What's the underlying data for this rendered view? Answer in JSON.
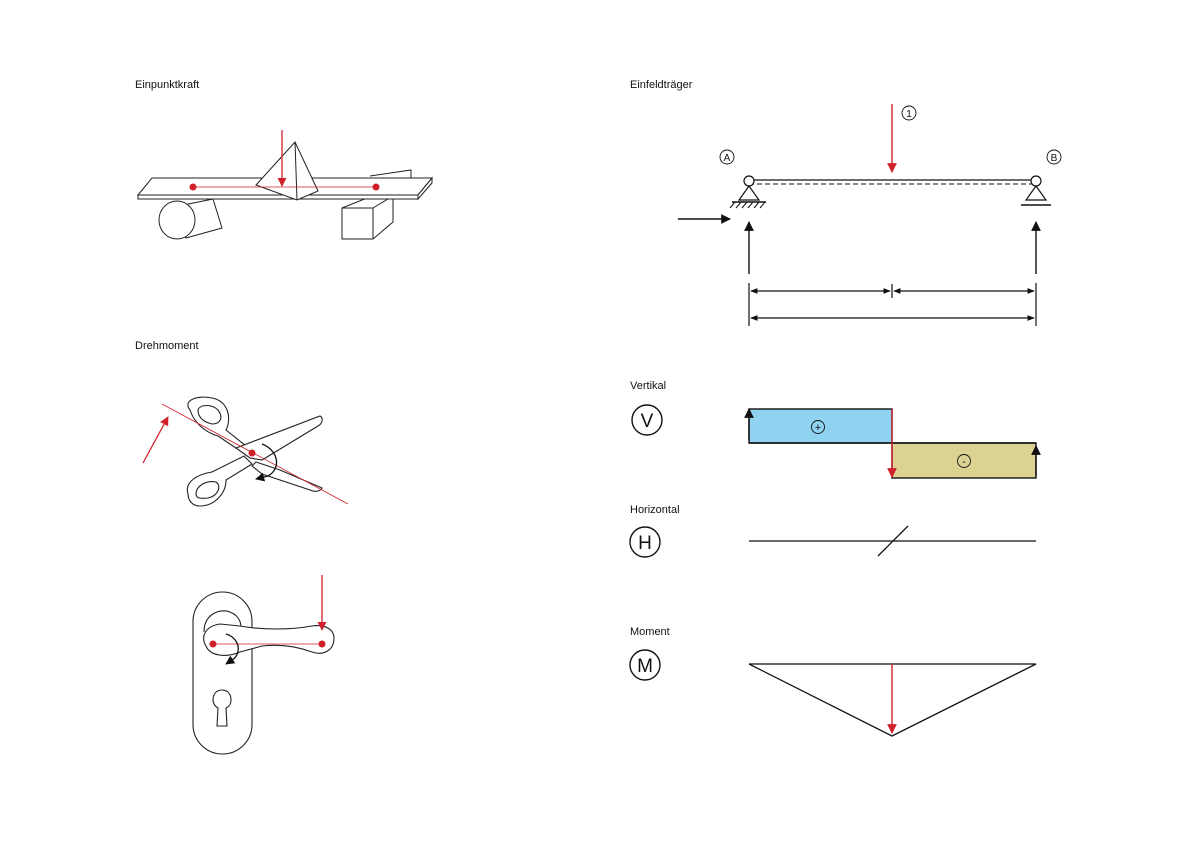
{
  "titles": {
    "einpunktkraft": "Einpunktkraft",
    "drehmoment": "Drehmoment",
    "einfeldtraeger": "Einfeldträger",
    "vertikal": "Vertikal",
    "horizontal": "Horizontal",
    "moment": "Moment"
  },
  "labels": {
    "load_number": "1",
    "support_a": "A",
    "support_b": "B",
    "badge_v": "V",
    "badge_h": "H",
    "badge_m": "M",
    "sign_plus": "+",
    "sign_minus": "-"
  },
  "colors": {
    "force_red": "#d0202a",
    "shear_positive": "#8fd3f0",
    "shear_negative": "#dcd393",
    "line": "#111111"
  }
}
